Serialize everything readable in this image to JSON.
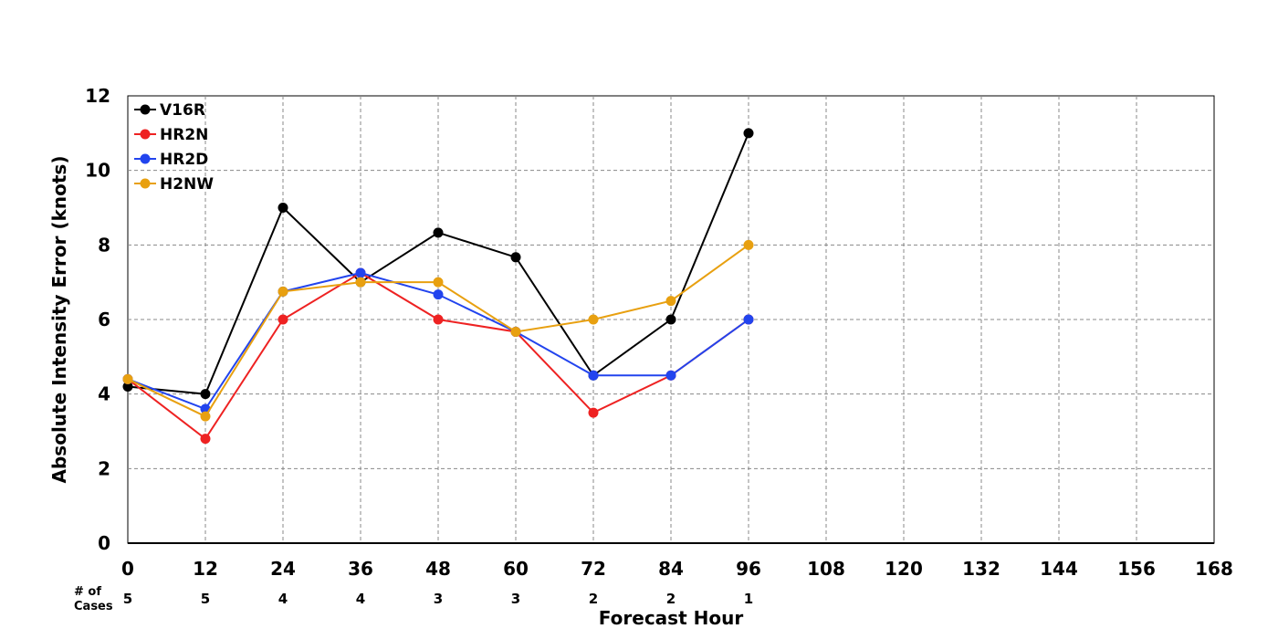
{
  "chart_data": {
    "type": "line",
    "title": "",
    "xlabel": "Forecast Hour",
    "ylabel": "Absolute Intensity Error (knots)",
    "xlim": [
      0,
      168
    ],
    "ylim": [
      0,
      12
    ],
    "x_ticks": [
      0,
      12,
      24,
      36,
      48,
      60,
      72,
      84,
      96,
      108,
      120,
      132,
      144,
      156,
      168
    ],
    "y_ticks": [
      0,
      2,
      4,
      6,
      8,
      10,
      12
    ],
    "grid": true,
    "legend_position": "top-left",
    "cases_label": [
      "# of",
      "Cases"
    ],
    "cases": [
      {
        "x": 0,
        "n": "5"
      },
      {
        "x": 12,
        "n": "5"
      },
      {
        "x": 24,
        "n": "4"
      },
      {
        "x": 36,
        "n": "4"
      },
      {
        "x": 48,
        "n": "3"
      },
      {
        "x": 60,
        "n": "3"
      },
      {
        "x": 72,
        "n": "2"
      },
      {
        "x": 84,
        "n": "2"
      },
      {
        "x": 96,
        "n": "1"
      }
    ],
    "series": [
      {
        "name": "V16R",
        "color": "#000000",
        "x": [
          0,
          12,
          24,
          36,
          48,
          60,
          72,
          84,
          96
        ],
        "values": [
          4.2,
          4.0,
          9.0,
          7.0,
          8.33,
          7.67,
          4.5,
          6.0,
          11.0
        ]
      },
      {
        "name": "HR2N",
        "color": "#ee2222",
        "x": [
          0,
          12,
          24,
          36,
          48,
          60,
          72,
          84,
          96
        ],
        "values": [
          4.4,
          2.8,
          6.0,
          7.25,
          6.0,
          5.67,
          3.5,
          4.5,
          6.0
        ]
      },
      {
        "name": "HR2D",
        "color": "#2244ee",
        "x": [
          0,
          12,
          24,
          36,
          48,
          60,
          72,
          84,
          96
        ],
        "values": [
          4.4,
          3.6,
          6.75,
          7.25,
          6.67,
          5.67,
          4.5,
          4.5,
          6.0
        ]
      },
      {
        "name": "H2NW",
        "color": "#e8a010",
        "x": [
          0,
          12,
          24,
          36,
          48,
          60,
          72,
          84,
          96
        ],
        "values": [
          4.4,
          3.4,
          6.75,
          7.0,
          7.0,
          5.67,
          6.0,
          6.5,
          8.0
        ]
      }
    ]
  }
}
